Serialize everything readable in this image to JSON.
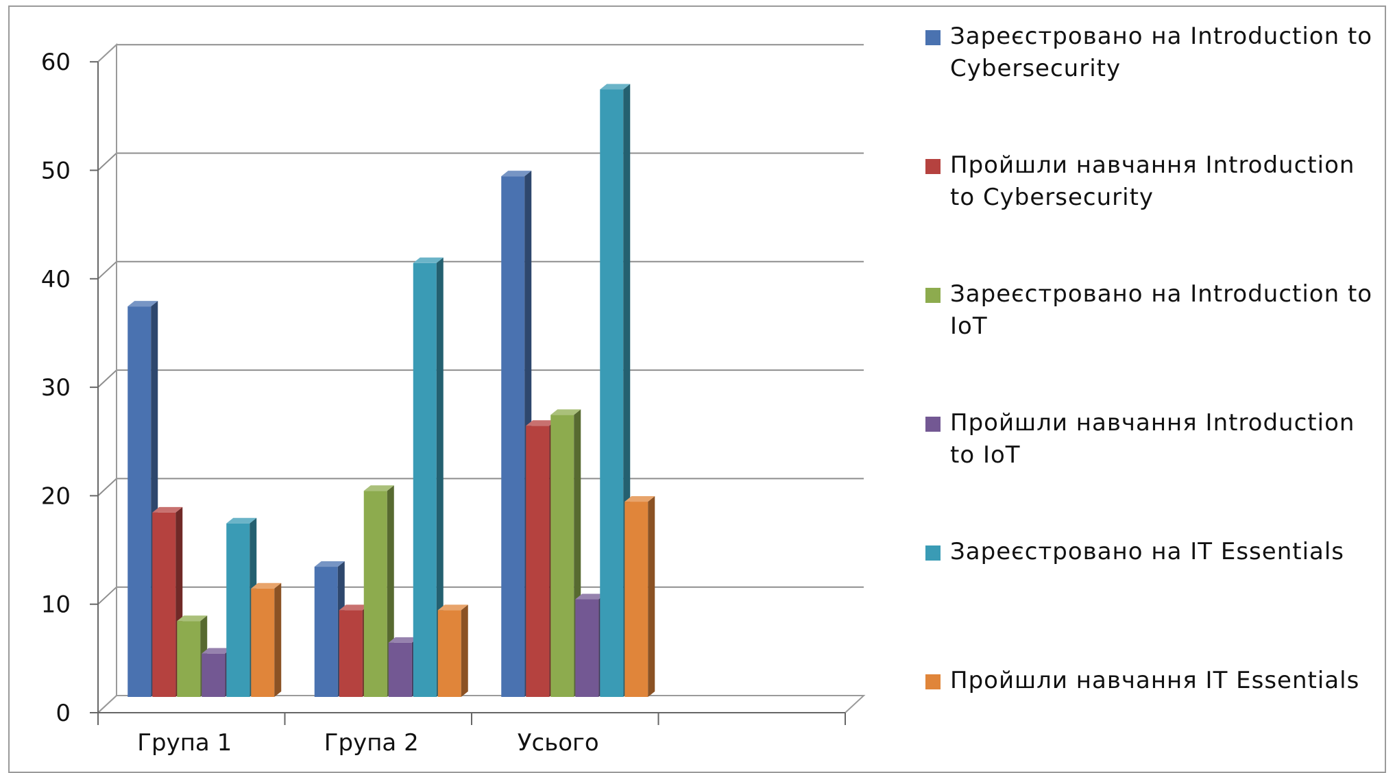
{
  "chart_data": {
    "type": "bar",
    "categories": [
      "Група 1",
      "Група 2",
      "Усього"
    ],
    "series": [
      {
        "name": "Зареєстровано на Introduction to Cybersecurity",
        "values": [
          36,
          12,
          48
        ],
        "color": "#4a72b0"
      },
      {
        "name": "Пройшли навчання Introduction to Cybersecurity",
        "values": [
          17,
          8,
          25
        ],
        "color": "#b5423f"
      },
      {
        "name": "Зареєстровано на Introduction to IoT",
        "values": [
          7,
          19,
          26
        ],
        "color": "#8dab4e"
      },
      {
        "name": "Пройшли навчання Introduction to IoT",
        "values": [
          4,
          5,
          9
        ],
        "color": "#735893"
      },
      {
        "name": "Зареєстровано на IT Essentials",
        "values": [
          16,
          40,
          56
        ],
        "color": "#3a9bb5"
      },
      {
        "name": "Пройшли навчання IT Essentials",
        "values": [
          10,
          8,
          18
        ],
        "color": "#e0853a"
      }
    ],
    "yticks": [
      "0",
      "10",
      "20",
      "30",
      "40",
      "50",
      "60"
    ],
    "ylim": [
      0,
      60
    ],
    "grid": true,
    "legend_position": "right",
    "three_d": true
  }
}
